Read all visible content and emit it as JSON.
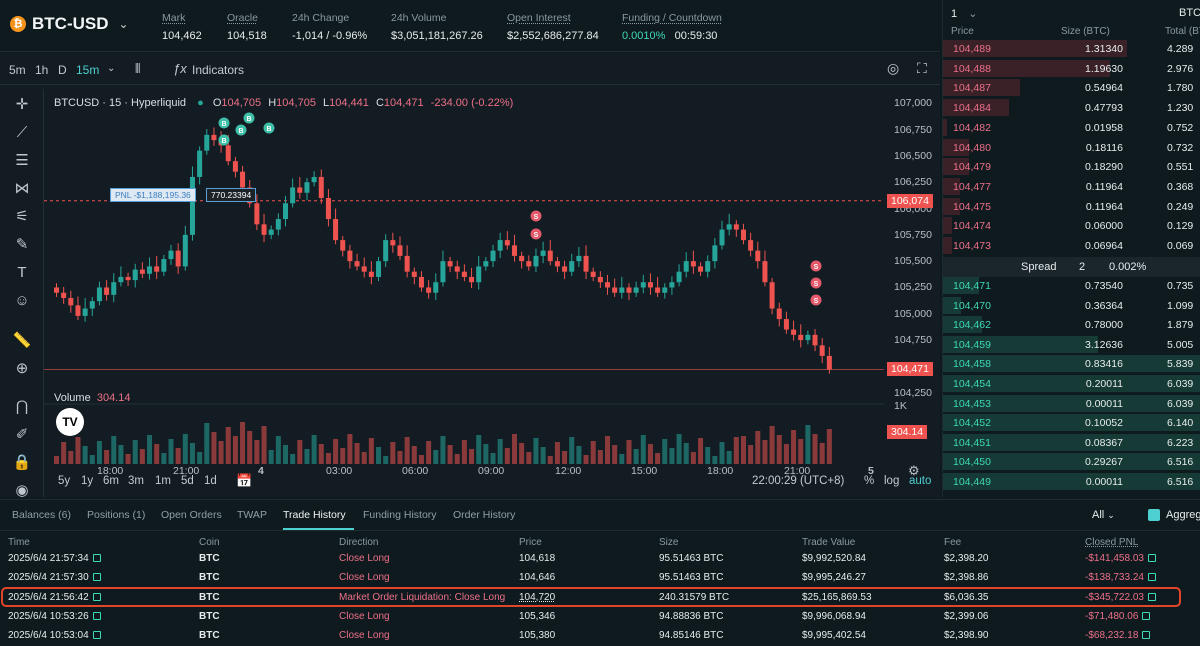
{
  "header": {
    "symbol": "BTC-USD",
    "stats": [
      {
        "label": "Mark",
        "value": "104,462"
      },
      {
        "label": "Oracle",
        "value": "104,518"
      },
      {
        "label": "24h Change",
        "value": "-1,014 / -0.96%"
      },
      {
        "label": "24h Volume",
        "value": "$3,051,181,267.26"
      },
      {
        "label": "Open Interest",
        "value": "$2,552,686,277.84"
      },
      {
        "label": "Funding / Countdown",
        "funding": "0.0010%",
        "countdown": "00:59:30"
      }
    ]
  },
  "toolbar": {
    "intervals": [
      "5m",
      "1h",
      "D",
      "15m"
    ],
    "indicators": "Indicators"
  },
  "chart": {
    "legend": {
      "title": "BTCUSD · 15 · Hyperliquid",
      "o_label": "O",
      "o": "104,705",
      "h_label": "H",
      "h": "104,705",
      "l_label": "L",
      "l": "104,441",
      "c_label": "C",
      "c": "104,471",
      "chg": "-234.00 (-0.22%)"
    },
    "volume_label": "Volume",
    "volume_value": "304.14",
    "pnl_label": "PNL -$1,188,195.36",
    "pnl_size": "770.23394",
    "price_ticks": [
      "107,000",
      "106,750",
      "106,500",
      "106,250",
      "106,000",
      "105,750",
      "105,500",
      "105,250",
      "105,000",
      "104,750",
      "104,500",
      "104,250"
    ],
    "current_price": "106,074",
    "last_price": "104,471",
    "vol_tick": "1K",
    "vol_last": "304.14",
    "x_ticks": [
      "18:00",
      "21:00",
      "4",
      "03:00",
      "06:00",
      "09:00",
      "12:00",
      "15:00",
      "18:00",
      "21:00",
      "5"
    ],
    "ranges": [
      "5y",
      "1y",
      "6m",
      "3m",
      "1m",
      "5d",
      "1d"
    ],
    "clock": "22:00:29 (UTC+8)",
    "pct": "%",
    "log": "log",
    "auto": "auto",
    "marker_buy": "B",
    "marker_sell": "S"
  },
  "chart_data": {
    "type": "candlestick",
    "title": "BTCUSD · 15 · Hyperliquid",
    "ylim": [
      104200,
      107050
    ],
    "x": [
      "18:00",
      "21:00",
      "4",
      "03:00",
      "06:00",
      "09:00",
      "12:00",
      "15:00",
      "18:00",
      "21:00",
      "5"
    ],
    "closes": [
      105200,
      105150,
      105080,
      104980,
      105050,
      105120,
      105250,
      105180,
      105300,
      105350,
      105320,
      105420,
      105380,
      105450,
      105400,
      105520,
      105600,
      105450,
      105750,
      106300,
      106550,
      106700,
      106650,
      106600,
      106450,
      106350,
      106200,
      106050,
      105850,
      105750,
      105800,
      105900,
      106050,
      106200,
      106150,
      106250,
      106300,
      106100,
      105900,
      105700,
      105600,
      105500,
      105450,
      105400,
      105350,
      105500,
      105700,
      105650,
      105550,
      105400,
      105350,
      105250,
      105200,
      105300,
      105500,
      105450,
      105400,
      105350,
      105300,
      105450,
      105500,
      105600,
      105700,
      105650,
      105550,
      105500,
      105450,
      105550,
      105600,
      105500,
      105450,
      105400,
      105500,
      105550,
      105400,
      105350,
      105300,
      105250,
      105200,
      105250,
      105200,
      105250,
      105300,
      105250,
      105200,
      105250,
      105300,
      105400,
      105500,
      105450,
      105400,
      105500,
      105650,
      105800,
      105850,
      105800,
      105700,
      105600,
      105500,
      105300,
      105050,
      104950,
      104850,
      104800,
      104750,
      104800,
      104700,
      104600,
      104471
    ],
    "price_line": 106074,
    "last": 104471
  },
  "orderbook": {
    "depth": "1",
    "asset": "BTC",
    "headers": [
      "Price",
      "Size (BTC)",
      "Total (BTC)"
    ],
    "asks": [
      {
        "p": "104,489",
        "s": "1.31340",
        "t": "4.289",
        "f": 1.0
      },
      {
        "p": "104,488",
        "s": "1.19630",
        "t": "2.976",
        "f": 0.91
      },
      {
        "p": "104,487",
        "s": "0.54964",
        "t": "1.780",
        "f": 0.42
      },
      {
        "p": "104,484",
        "s": "0.47793",
        "t": "1.230",
        "f": 0.36
      },
      {
        "p": "104,482",
        "s": "0.01958",
        "t": "0.752",
        "f": 0.02
      },
      {
        "p": "104,480",
        "s": "0.18116",
        "t": "0.732",
        "f": 0.14
      },
      {
        "p": "104,479",
        "s": "0.18290",
        "t": "0.551",
        "f": 0.14
      },
      {
        "p": "104,477",
        "s": "0.11964",
        "t": "0.368",
        "f": 0.09
      },
      {
        "p": "104,475",
        "s": "0.11964",
        "t": "0.249",
        "f": 0.09
      },
      {
        "p": "104,474",
        "s": "0.06000",
        "t": "0.129",
        "f": 0.05
      },
      {
        "p": "104,473",
        "s": "0.06964",
        "t": "0.069",
        "f": 0.05
      }
    ],
    "spread": {
      "label": "Spread",
      "value": "2",
      "pct": "0.002%"
    },
    "bids": [
      {
        "p": "104,471",
        "s": "0.73540",
        "t": "0.735",
        "f": 0.14
      },
      {
        "p": "104,470",
        "s": "0.36364",
        "t": "1.099",
        "f": 0.07
      },
      {
        "p": "104,462",
        "s": "0.78000",
        "t": "1.879",
        "f": 0.15
      },
      {
        "p": "104,459",
        "s": "3.12636",
        "t": "5.005",
        "f": 0.6
      },
      {
        "p": "104,458",
        "s": "0.83416",
        "t": "5.839",
        "f": 1.0
      },
      {
        "p": "104,454",
        "s": "0.20011",
        "t": "6.039",
        "f": 1.0
      },
      {
        "p": "104,453",
        "s": "0.00011",
        "t": "6.039",
        "f": 1.0
      },
      {
        "p": "104,452",
        "s": "0.10052",
        "t": "6.140",
        "f": 1.0
      },
      {
        "p": "104,451",
        "s": "0.08367",
        "t": "6.223",
        "f": 1.0
      },
      {
        "p": "104,450",
        "s": "0.29267",
        "t": "6.516",
        "f": 1.0
      },
      {
        "p": "104,449",
        "s": "0.00011",
        "t": "6.516",
        "f": 1.0
      }
    ]
  },
  "bottom": {
    "tabs": [
      "Balances (6)",
      "Positions (1)",
      "Open Orders",
      "TWAP",
      "Trade History",
      "Funding History",
      "Order History"
    ],
    "filter": "All",
    "aggregate": "Aggrega",
    "columns": [
      "Time",
      "Coin",
      "Direction",
      "Price",
      "Size",
      "Trade Value",
      "Fee",
      "Closed PNL"
    ],
    "rows": [
      [
        "2025/6/4 21:57:34",
        "BTC",
        "Close Long",
        "104,618",
        "95.51463 BTC",
        "$9,992,520.84",
        "$2,398.20",
        "-$141,458.03"
      ],
      [
        "2025/6/4 21:57:30",
        "BTC",
        "Close Long",
        "104,646",
        "95.51463 BTC",
        "$9,995,246.27",
        "$2,398.86",
        "-$138,733.24"
      ],
      [
        "2025/6/4 21:56:42",
        "BTC",
        "Market Order Liquidation: Close Long",
        "104,720",
        "240.31579 BTC",
        "$25,165,869.53",
        "$6,036.35",
        "-$345,722.03"
      ],
      [
        "2025/6/4 10:53:26",
        "BTC",
        "Close Long",
        "105,346",
        "94.88836 BTC",
        "$9,996,068.94",
        "$2,399.06",
        "-$71,480.06"
      ],
      [
        "2025/6/4 10:53:04",
        "BTC",
        "Close Long",
        "105,380",
        "94.85146 BTC",
        "$9,995,402.54",
        "$2,398.90",
        "-$68,232.18"
      ]
    ]
  },
  "colors": {
    "up": "#26a69a",
    "down": "#ef5350",
    "accent": "#4ed0d0",
    "highlight": "#e2452a"
  }
}
